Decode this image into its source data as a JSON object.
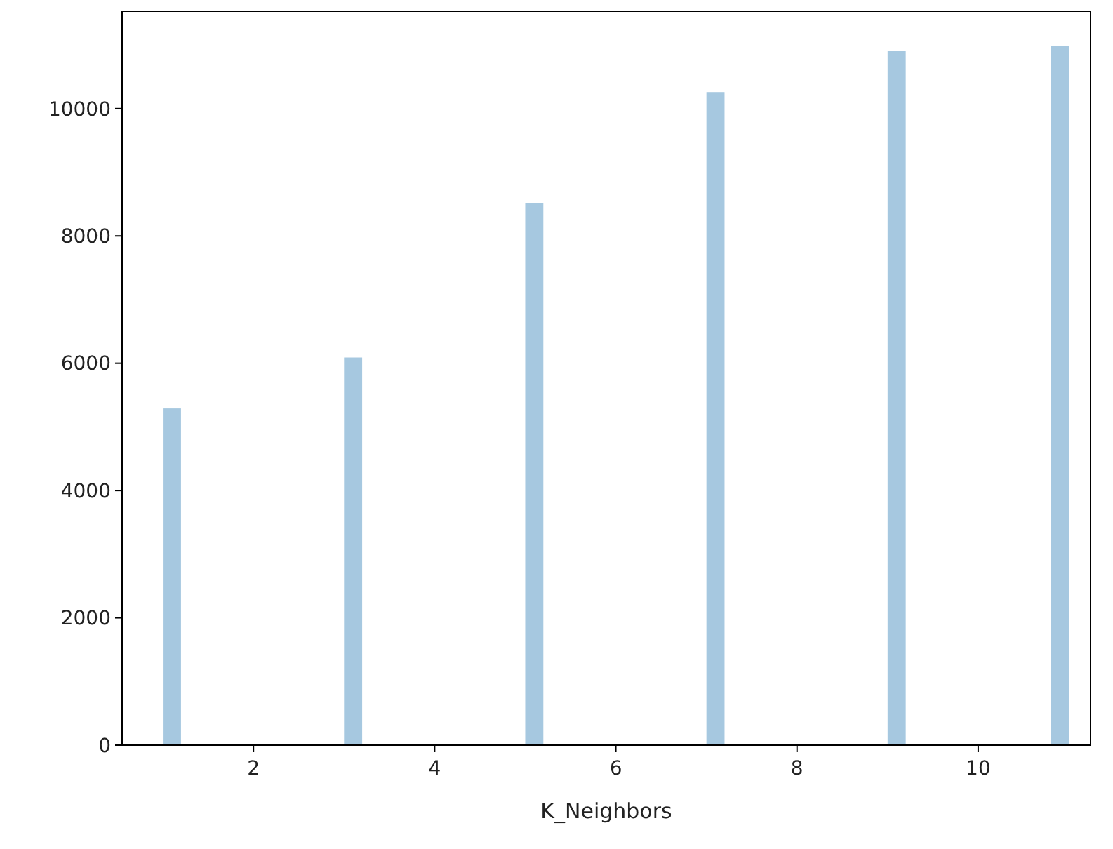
{
  "chart_data": {
    "type": "histogram",
    "xlabel": "K_Neighbors",
    "color": "#a6c8e0",
    "bins": [
      1,
      1.2,
      1.4,
      1.6,
      1.8,
      2,
      2.2,
      2.4,
      2.6,
      2.8,
      3,
      3.2,
      3.4,
      3.6,
      3.8,
      4,
      4.2,
      4.4,
      4.6,
      4.8,
      5,
      5.2,
      5.4,
      5.6,
      5.8,
      6,
      6.2,
      6.4,
      6.6,
      6.8,
      7,
      7.2,
      7.4,
      7.6,
      7.8,
      8,
      8.2,
      8.4,
      8.6,
      8.8,
      9,
      9.2,
      9.4,
      9.6,
      9.8,
      10,
      10.2,
      10.4,
      10.6,
      10.8,
      11
    ],
    "values": [
      5290,
      0,
      0,
      0,
      0,
      0,
      0,
      0,
      0,
      0,
      6090,
      0,
      0,
      0,
      0,
      0,
      0,
      0,
      0,
      0,
      8510,
      0,
      0,
      0,
      0,
      0,
      0,
      0,
      0,
      0,
      10260,
      0,
      0,
      0,
      0,
      0,
      0,
      0,
      0,
      0,
      10910,
      0,
      0,
      0,
      0,
      0,
      0,
      0,
      0,
      10990
    ],
    "xlim": [
      0.55,
      11.24
    ],
    "ylim": [
      0,
      11530
    ],
    "xticks": [
      2,
      4,
      6,
      8,
      10
    ],
    "yticks": [
      0,
      2000,
      4000,
      6000,
      8000,
      10000
    ],
    "grid": false
  }
}
